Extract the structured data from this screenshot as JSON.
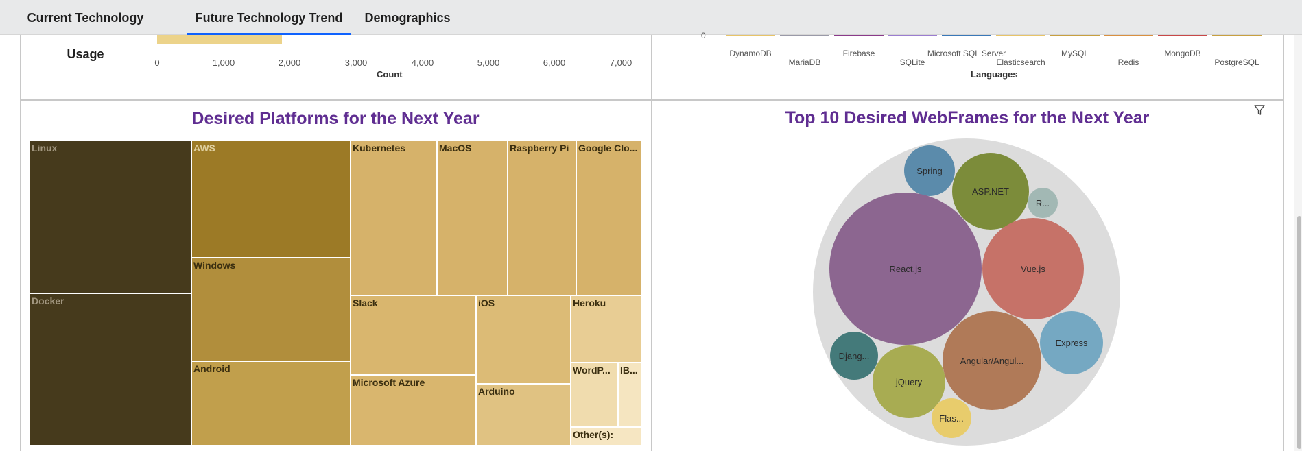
{
  "tabs": [
    {
      "label": "Current Technology Usage",
      "active": false
    },
    {
      "label": "Future Technology Trend",
      "active": true
    },
    {
      "label": "Demographics",
      "active": false
    }
  ],
  "top_left": {
    "x_ticks": [
      "0",
      "1,000",
      "2,000",
      "3,000",
      "4,000",
      "5,000",
      "6,000",
      "7,000"
    ],
    "x_title": "Count",
    "bar_color": "#ecd38a"
  },
  "top_right": {
    "y_tick": "0",
    "x_title": "Languages",
    "categories": [
      "DynamoDB",
      "MariaDB",
      "Firebase",
      "SQLite",
      "Microsoft SQL Server",
      "Elasticsearch",
      "MySQL",
      "Redis",
      "MongoDB",
      "PostgreSQL"
    ],
    "line_colors": [
      "#e8c468",
      "#9a9aa8",
      "#8a3a8a",
      "#9b7dd0",
      "#3a78b8",
      "#e8c468",
      "#c8a040",
      "#d99040",
      "#c84848",
      "#c8a040"
    ]
  },
  "platforms": {
    "title": "Desired Platforms for the Next Year",
    "tiles": [
      {
        "label": "Linux",
        "color": "#463a1c",
        "text_color": "#a29780"
      },
      {
        "label": "Docker",
        "color": "#463a1c",
        "text_color": "#a29780"
      },
      {
        "label": "AWS",
        "color": "#9c7a26",
        "text_color": "#e0d0a0"
      },
      {
        "label": "Windows",
        "color": "#b18e3c",
        "text_color": "#3a2e10"
      },
      {
        "label": "Android",
        "color": "#c19f4c",
        "text_color": "#3a2e10"
      },
      {
        "label": "Kubernetes",
        "color": "#d6b26a",
        "text_color": "#3a2e10"
      },
      {
        "label": "MacOS",
        "color": "#d6b26a",
        "text_color": "#3a2e10"
      },
      {
        "label": "Raspberry Pi",
        "color": "#d6b26a",
        "text_color": "#3a2e10"
      },
      {
        "label": "Google Clo...",
        "color": "#d6b26a",
        "text_color": "#3a2e10"
      },
      {
        "label": "Slack",
        "color": "#d9b66e",
        "text_color": "#3a2e10"
      },
      {
        "label": "iOS",
        "color": "#dcbb76",
        "text_color": "#3a2e10"
      },
      {
        "label": "Heroku",
        "color": "#e8cd94",
        "text_color": "#3a2e10"
      },
      {
        "label": "Microsoft Azure",
        "color": "#d9b66e",
        "text_color": "#3a2e10"
      },
      {
        "label": "Arduino",
        "color": "#e0c282",
        "text_color": "#3a2e10"
      },
      {
        "label": "WordP...",
        "color": "#f0dcae",
        "text_color": "#3a2e10"
      },
      {
        "label": "IB...",
        "color": "#f5e5c0",
        "text_color": "#3a2e10"
      },
      {
        "label": "Other(s):",
        "color": "#f6e6c2",
        "text_color": "#3a2e10"
      }
    ]
  },
  "webframes": {
    "title": "Top 10 Desired  WebFrames for the Next Year",
    "container_color": "#dcdcdc",
    "bubbles": [
      {
        "label": "Spring",
        "color": "#5b8bab"
      },
      {
        "label": "ASP.NET",
        "color": "#7c8c3a"
      },
      {
        "label": "R...",
        "color": "#a2b8b4"
      },
      {
        "label": "React.js",
        "color": "#8c6690"
      },
      {
        "label": "Vue.js",
        "color": "#c67268"
      },
      {
        "label": "Express",
        "color": "#75a8c2"
      },
      {
        "label": "Djang...",
        "color": "#447a7a"
      },
      {
        "label": "jQuery",
        "color": "#a8ac52"
      },
      {
        "label": "Angular/Angul...",
        "color": "#b07a58"
      },
      {
        "label": "Flas...",
        "color": "#e8cc6c"
      }
    ]
  }
}
